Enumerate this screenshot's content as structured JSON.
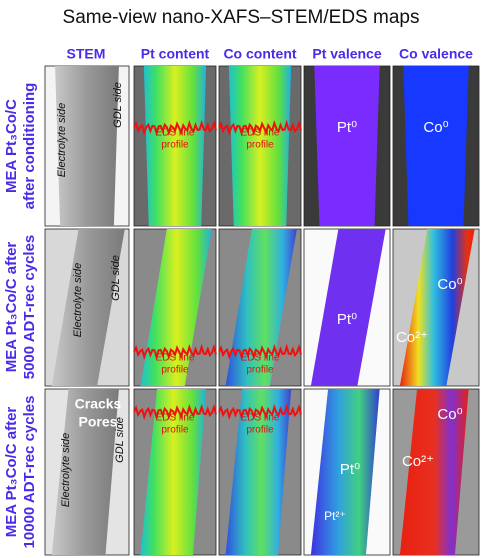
{
  "title": "Same-view nano-XAFS–STEM/EDS maps",
  "columns": [
    "STEM",
    "Pt content",
    "Co content",
    "Pt valence",
    "Co valence"
  ],
  "rows": [
    {
      "label": [
        "MEA Pt₃Co/C",
        "after conditioning"
      ],
      "electrolyte": "Electrolyte side",
      "gdl": "GDL side",
      "pt_eds": [
        "EDS line",
        "profile"
      ],
      "co_eds": [
        "EDS line",
        "profile"
      ],
      "pt_valence": [
        "Pt⁰"
      ],
      "co_valence": [
        "Co⁰"
      ]
    },
    {
      "label": [
        "MEA Pt₃Co/C after",
        "5000 ADT-rec cycles"
      ],
      "electrolyte": "Electrolyte side",
      "gdl": "GDL side",
      "pt_eds": [
        "EDS line",
        "profile"
      ],
      "co_eds": [
        "EDS line",
        "profile"
      ],
      "pt_valence": [
        "Pt⁰"
      ],
      "co_valence": [
        "Co⁰",
        "Co²⁺"
      ]
    },
    {
      "label": [
        "MEA Pt₃Co/C after",
        "10000 ADT-rec cycles"
      ],
      "stem_notes": [
        "Cracks",
        "Pores"
      ],
      "electrolyte": "Electrolyte side",
      "gdl": "GDL side",
      "pt_eds": [
        "EDS line",
        "profile"
      ],
      "co_eds": [
        "EDS line",
        "profile"
      ],
      "pt_valence": [
        "Pt⁰",
        "Pt²⁺"
      ],
      "co_valence": [
        "Co⁰",
        "Co²⁺"
      ]
    }
  ]
}
